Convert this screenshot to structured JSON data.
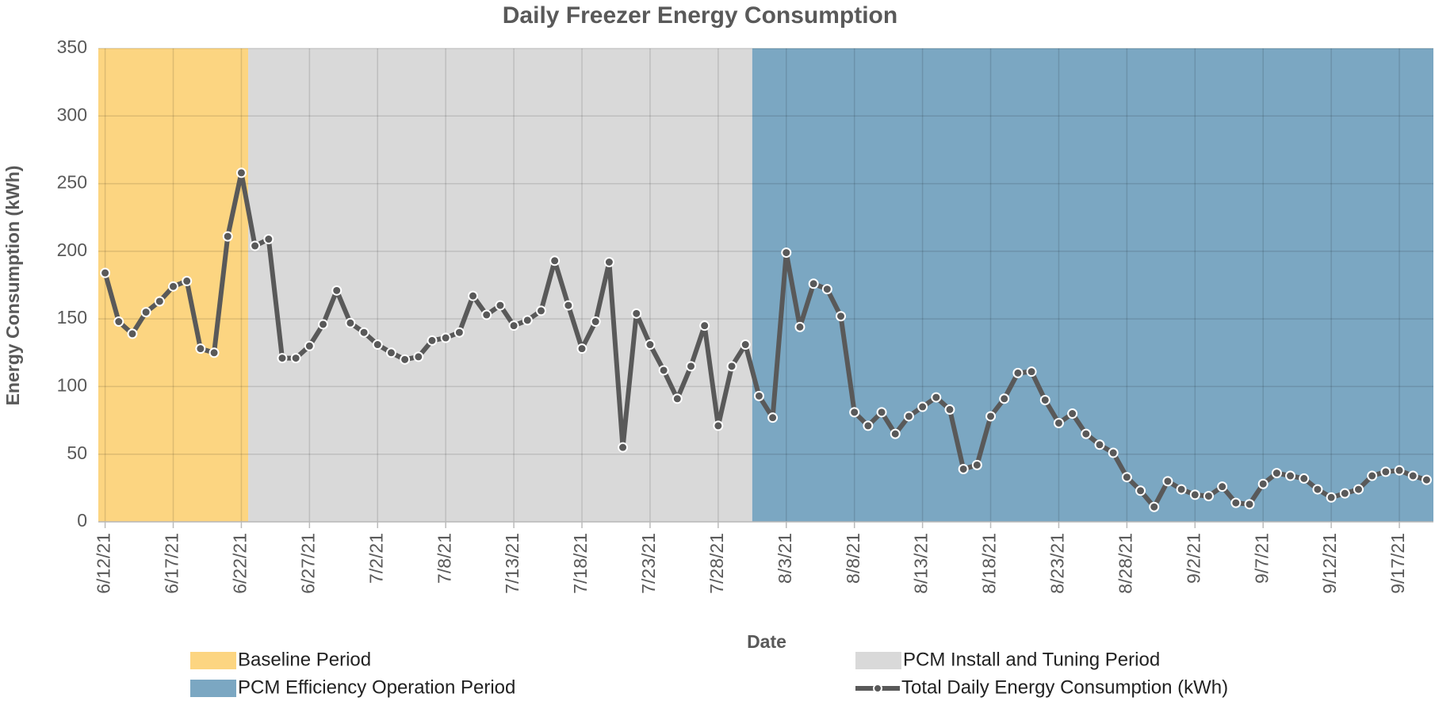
{
  "chart_data": {
    "type": "line",
    "title": "Daily Freezer Energy Consumption",
    "xlabel": "Date",
    "ylabel": "Energy Consumption (kWh)",
    "categories": [
      "6/12/21",
      null,
      null,
      null,
      null,
      "6/17/21",
      null,
      null,
      null,
      null,
      "6/22/21",
      null,
      null,
      null,
      null,
      "6/27/21",
      null,
      null,
      null,
      null,
      "7/2/21",
      null,
      null,
      null,
      null,
      "7/8/21",
      null,
      null,
      null,
      null,
      "7/13/21",
      null,
      null,
      null,
      null,
      "7/18/21",
      null,
      null,
      null,
      null,
      "7/23/21",
      null,
      null,
      null,
      null,
      "7/28/21",
      null,
      null,
      null,
      null,
      "8/3/21",
      null,
      null,
      null,
      null,
      "8/8/21",
      null,
      null,
      null,
      null,
      "8/13/21",
      null,
      null,
      null,
      null,
      "8/18/21",
      null,
      null,
      null,
      null,
      "8/23/21",
      null,
      null,
      null,
      null,
      "8/28/21",
      null,
      null,
      null,
      null,
      "9/2/21",
      null,
      null,
      null,
      null,
      "9/7/21",
      null,
      null,
      null,
      null,
      "9/12/21",
      null,
      null,
      null,
      null,
      "9/17/21",
      null,
      null
    ],
    "series": [
      {
        "name": "Total Daily Energy Consumption (kWh)",
        "color": "#595959",
        "values": [
          184,
          148,
          139,
          155,
          163,
          174,
          178,
          128,
          125,
          211,
          258,
          204,
          209,
          121,
          121,
          130,
          146,
          171,
          147,
          140,
          131,
          125,
          120,
          122,
          134,
          136,
          140,
          167,
          153,
          160,
          145,
          149,
          156,
          193,
          160,
          128,
          148,
          192,
          55,
          154,
          131,
          112,
          91,
          115,
          145,
          71,
          115,
          131,
          93,
          77,
          199,
          144,
          176,
          172,
          152,
          81,
          71,
          81,
          65,
          78,
          85,
          92,
          83,
          39,
          42,
          78,
          91,
          110,
          111,
          90,
          73,
          80,
          65,
          57,
          51,
          33,
          23,
          11,
          30,
          24,
          20,
          19,
          26,
          14,
          13,
          28,
          36,
          34,
          32,
          24,
          18,
          21,
          24,
          34,
          37,
          38,
          34,
          31
        ]
      }
    ],
    "periods": [
      {
        "name": "Baseline Period",
        "color": "#fcd581",
        "start": 0,
        "end": 10
      },
      {
        "name": "PCM Install and Tuning Period",
        "color": "#d9d9d9",
        "start": 11,
        "end": 47
      },
      {
        "name": "PCM Efficiency Operation Period",
        "color": "#7ba7c2",
        "start": 48,
        "end": 97
      }
    ],
    "ylim": [
      0,
      350
    ],
    "yticks": [
      0,
      50,
      100,
      150,
      200,
      250,
      300,
      350
    ],
    "grid": true,
    "legend": "bottom"
  }
}
